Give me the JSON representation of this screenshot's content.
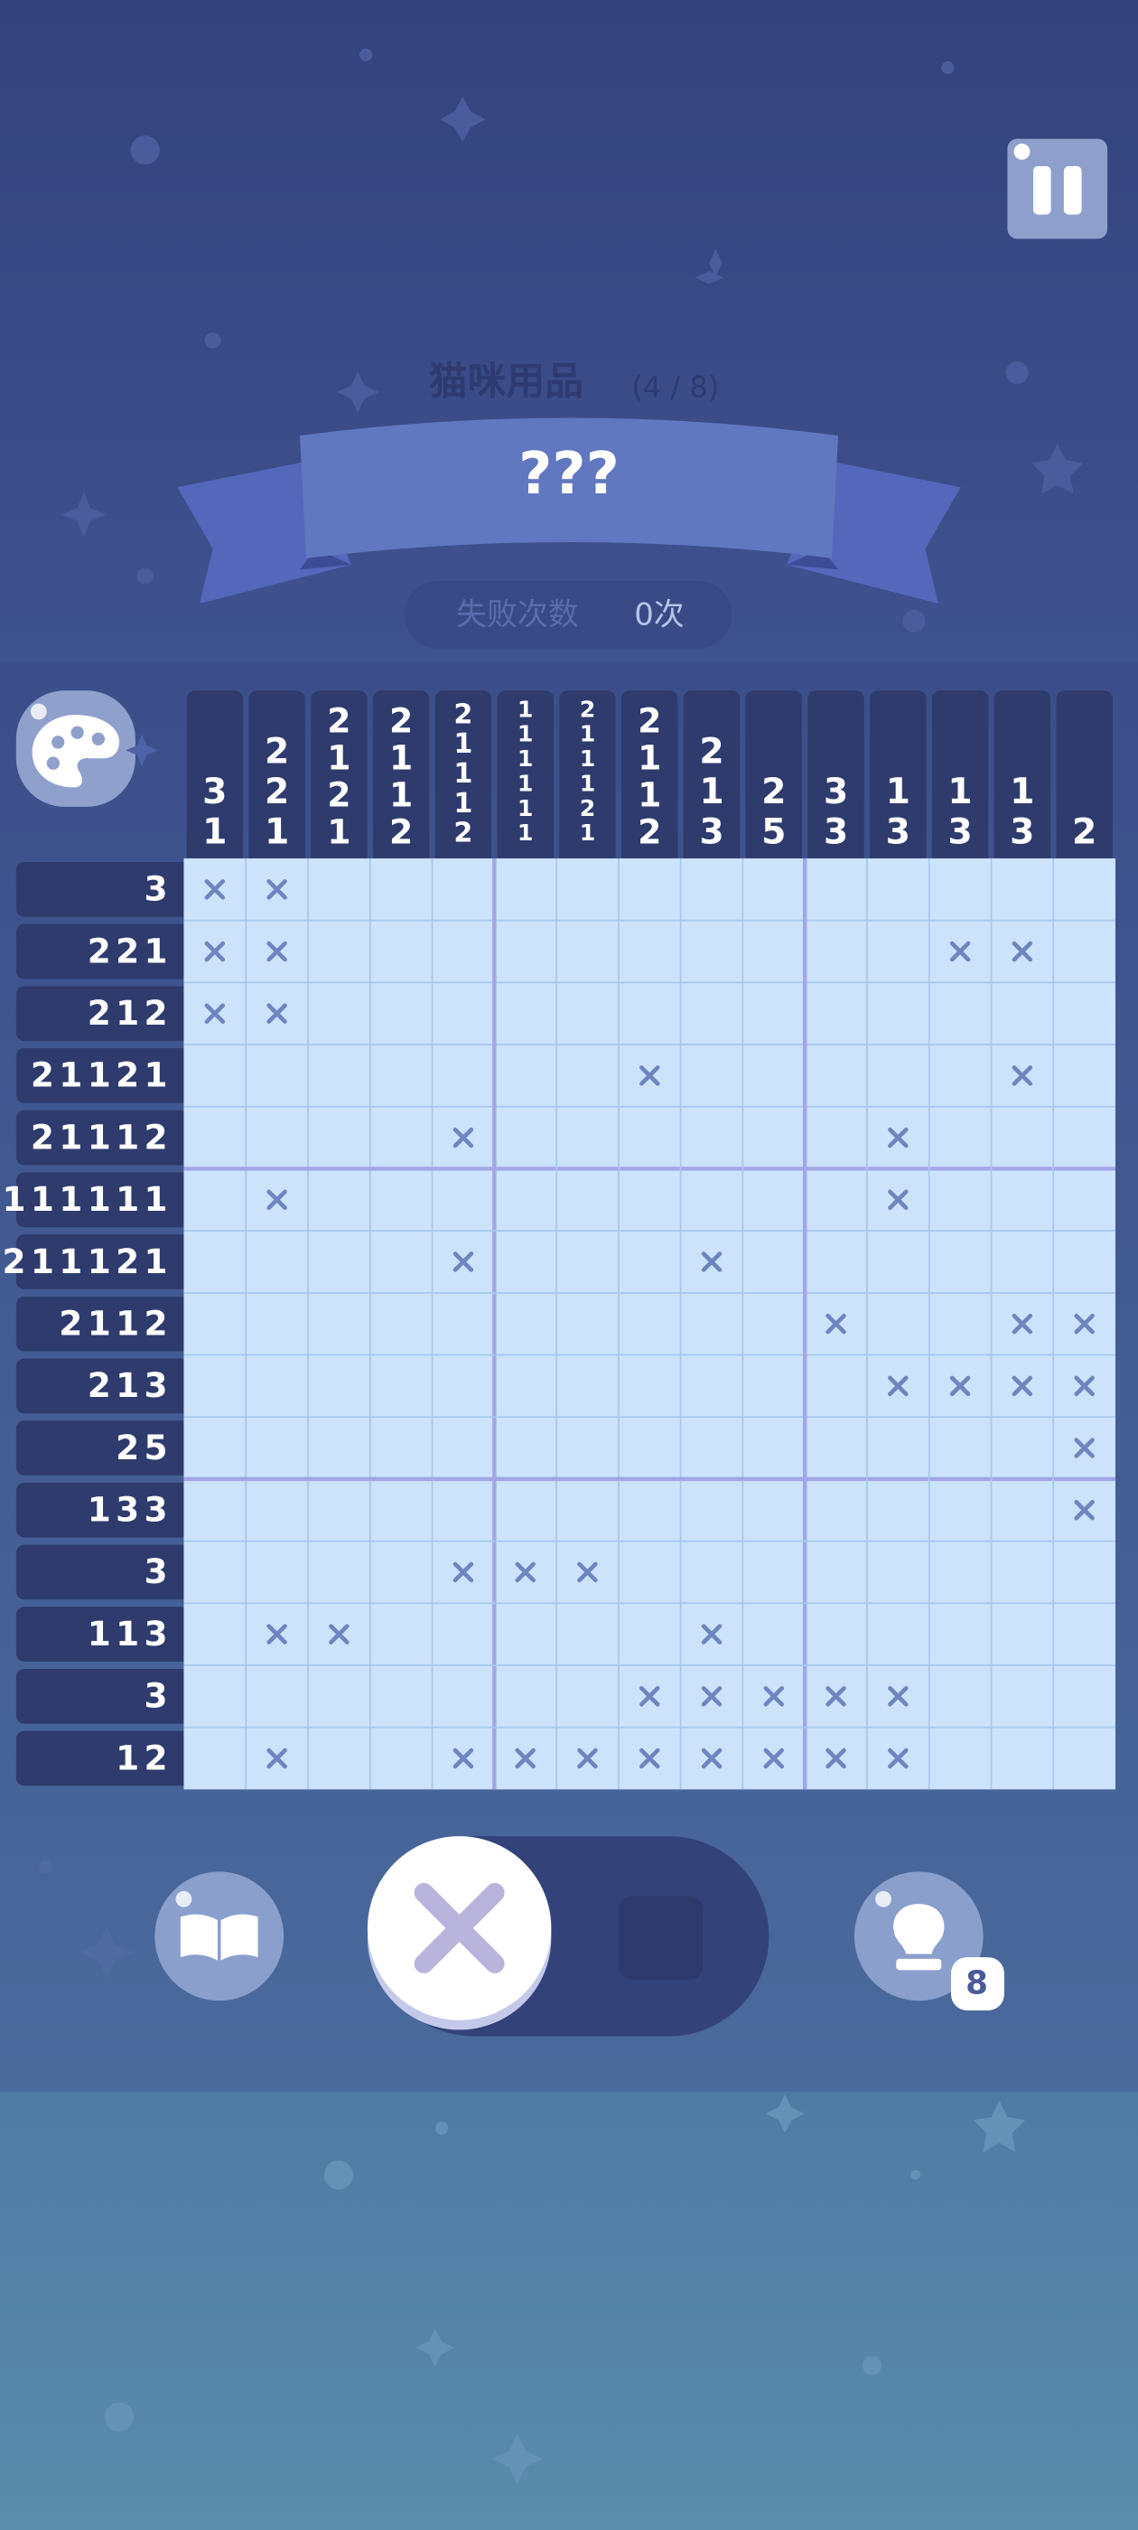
{
  "header": {
    "category": "猫咪用品",
    "progress": "(4 / 8)",
    "title": "???"
  },
  "failures": {
    "label": "失败次数",
    "count": "0次"
  },
  "puzzle": {
    "column_clues": [
      [
        3,
        1
      ],
      [
        2,
        2,
        1
      ],
      [
        2,
        1,
        2,
        1
      ],
      [
        2,
        1,
        1,
        2
      ],
      [
        2,
        1,
        1,
        1,
        2
      ],
      [
        1,
        1,
        1,
        1,
        1,
        1
      ],
      [
        2,
        1,
        1,
        1,
        2,
        1
      ],
      [
        2,
        1,
        1,
        2
      ],
      [
        2,
        1,
        3
      ],
      [
        2,
        5
      ],
      [
        3,
        3
      ],
      [
        1,
        3
      ],
      [
        1,
        3
      ],
      [
        1,
        3
      ],
      [
        2
      ]
    ],
    "row_clues": [
      "3",
      "221",
      "212",
      "21121",
      "21112",
      "111111",
      "211121",
      "2112",
      "213",
      "25",
      "133",
      "3",
      "113",
      "3",
      "12"
    ]
  },
  "hint_count": 8
}
